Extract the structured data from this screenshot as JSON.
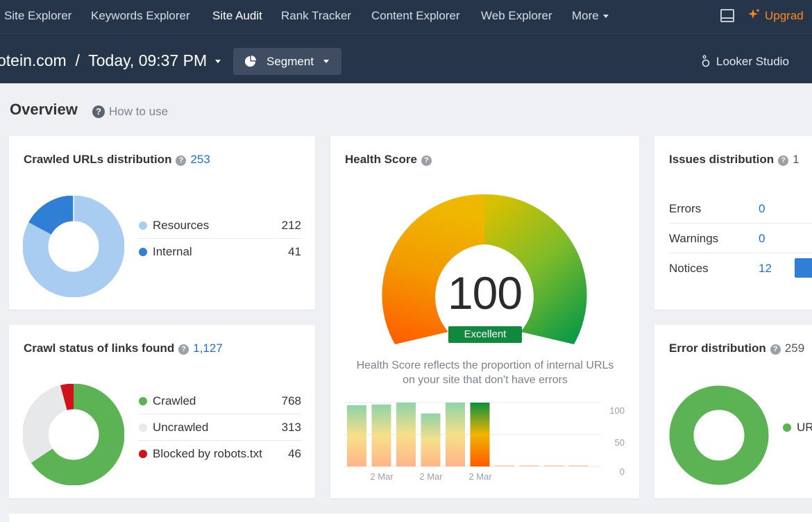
{
  "nav": {
    "items": [
      "Site Explorer",
      "Keywords Explorer",
      "Site Audit",
      "Rank Tracker",
      "Content Explorer",
      "Web Explorer"
    ],
    "more_label": "More",
    "upgrade_label": "Upgrad"
  },
  "subbar": {
    "project": "otein.com  /  Today, 09:37 PM",
    "segment_label": "Segment",
    "looker_label": "Looker Studio"
  },
  "overview": {
    "title": "Overview",
    "how_to": "How to use"
  },
  "crawled_urls": {
    "title": "Crawled URLs distribution",
    "total": "253",
    "items": [
      {
        "label": "Resources",
        "value": 212,
        "color": "#a9cdf0"
      },
      {
        "label": "Internal",
        "value": 41,
        "color": "#2f7fd6"
      }
    ]
  },
  "crawl_status": {
    "title": "Crawl status of links found",
    "total": "1,127",
    "items": [
      {
        "label": "Crawled",
        "value": 768,
        "color": "#5cb354"
      },
      {
        "label": "Uncrawled",
        "value": 313,
        "color": "#e7e8ea"
      },
      {
        "label": "Blocked by robots.txt",
        "value": 46,
        "color": "#d0121b"
      }
    ]
  },
  "health": {
    "title": "Health Score",
    "score": "100",
    "badge": "Excellent",
    "description": "Health Score reflects the proportion of internal URLs on your site that don't have errors",
    "chart_data": {
      "type": "bar",
      "values": [
        96,
        97,
        100,
        83,
        100,
        100,
        0,
        0,
        0,
        0
      ],
      "x_labels": [
        "2 Mar",
        "2 Mar",
        "2 Mar"
      ],
      "y_ticks": [
        "100",
        "50",
        "0"
      ],
      "ylim": [
        0,
        100
      ]
    }
  },
  "issues": {
    "title": "Issues distribution",
    "count": "1",
    "rows": [
      {
        "label": "Errors",
        "value": "0"
      },
      {
        "label": "Warnings",
        "value": "0"
      },
      {
        "label": "Notices",
        "value": "12"
      }
    ]
  },
  "error_distribution": {
    "title": "Error distribution",
    "count": "259",
    "legend": "UR"
  }
}
